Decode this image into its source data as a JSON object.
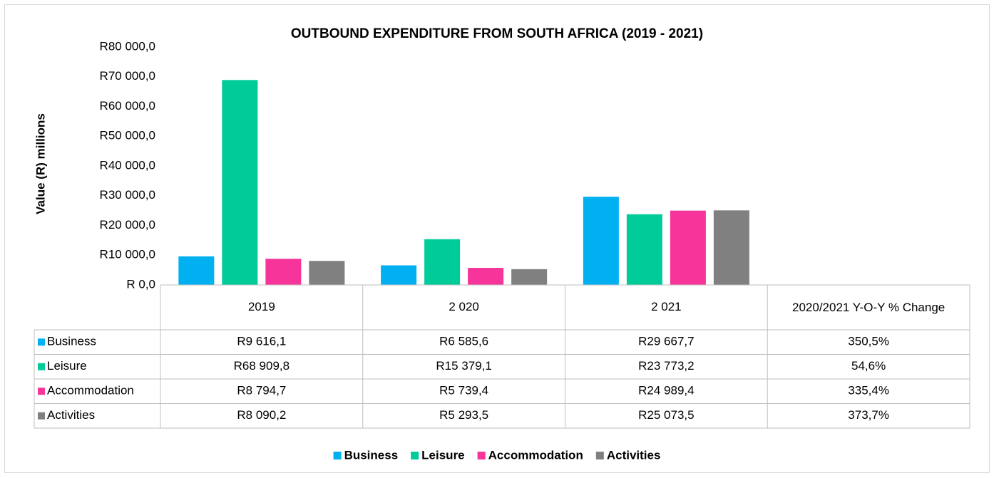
{
  "chart_data": {
    "type": "bar",
    "title": "OUTBOUND EXPENDITURE FROM SOUTH AFRICA (2019 - 2021)",
    "y_label": "Value (R) millions",
    "categories": [
      "2019",
      "2 020",
      "2 021"
    ],
    "series": [
      {
        "name": "Business",
        "color": "#00b0f0",
        "values": [
          9616.1,
          6585.6,
          29667.7
        ],
        "value_labels": [
          "R9 616,1",
          "R6 585,6",
          "R29 667,7"
        ]
      },
      {
        "name": "Leisure",
        "color": "#00cc99",
        "values": [
          68909.8,
          15379.1,
          23773.2
        ],
        "value_labels": [
          "R68 909,8",
          "R15 379,1",
          "R23 773,2"
        ]
      },
      {
        "name": "Accommodation",
        "color": "#f7349a",
        "values": [
          8794.7,
          5739.4,
          24989.4
        ],
        "value_labels": [
          "R8 794,7",
          "R5 739,4",
          "R24 989,4"
        ]
      },
      {
        "name": "Activities",
        "color": "#808080",
        "values": [
          8090.2,
          5293.5,
          25073.5
        ],
        "value_labels": [
          "R8 090,2",
          "R5 293,5",
          "R25 073,5"
        ]
      }
    ],
    "change_column": {
      "header": "2020/2021  Y-O-Y % Change",
      "values": [
        350.5,
        54.6,
        335.4,
        373.7
      ],
      "value_labels": [
        "350,5%",
        "54,6%",
        "335,4%",
        "373,7%"
      ]
    },
    "ylim": [
      0,
      80000
    ],
    "yticks": [
      {
        "value": 0,
        "label": "R 0,0"
      },
      {
        "value": 10000,
        "label": "R10 000,0"
      },
      {
        "value": 20000,
        "label": "R20 000,0"
      },
      {
        "value": 30000,
        "label": "R30 000,0"
      },
      {
        "value": 40000,
        "label": "R40 000,0"
      },
      {
        "value": 50000,
        "label": "R50 000,0"
      },
      {
        "value": 60000,
        "label": "R60 000,0"
      },
      {
        "value": 70000,
        "label": "R70 000,0"
      },
      {
        "value": 80000,
        "label": "R80 000,0"
      }
    ],
    "grid": false,
    "legend": "bottom"
  }
}
